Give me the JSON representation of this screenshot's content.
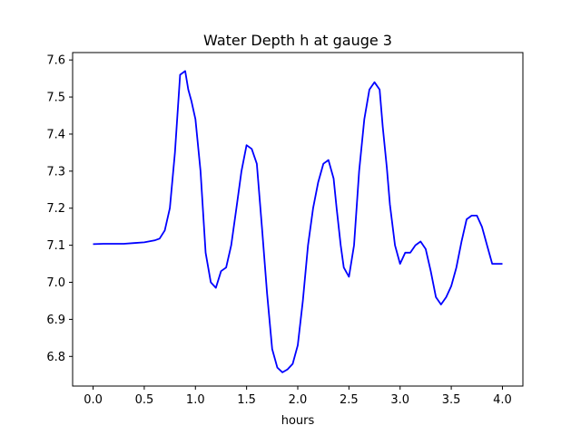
{
  "chart_data": {
    "type": "line",
    "title": "Water Depth h at gauge 3",
    "xlabel": "hours",
    "ylabel": "",
    "xlim": [
      -0.2,
      4.2
    ],
    "ylim": [
      6.72,
      7.62
    ],
    "xticks": [
      0.0,
      0.5,
      1.0,
      1.5,
      2.0,
      2.5,
      3.0,
      3.5,
      4.0
    ],
    "xtick_labels": [
      "0.0",
      "0.5",
      "1.0",
      "1.5",
      "2.0",
      "2.5",
      "3.0",
      "3.5",
      "4.0"
    ],
    "yticks": [
      6.8,
      6.9,
      7.0,
      7.1,
      7.2,
      7.3,
      7.4,
      7.5,
      7.6
    ],
    "ytick_labels": [
      "6.8",
      "6.9",
      "7.0",
      "7.1",
      "7.2",
      "7.3",
      "7.4",
      "7.5",
      "7.6"
    ],
    "grid": false,
    "series": [
      {
        "color": "#0000ff",
        "x": [
          0.0,
          0.1,
          0.2,
          0.3,
          0.4,
          0.5,
          0.6,
          0.65,
          0.7,
          0.75,
          0.8,
          0.85,
          0.9,
          0.93,
          0.96,
          1.0,
          1.05,
          1.1,
          1.15,
          1.2,
          1.25,
          1.3,
          1.35,
          1.4,
          1.45,
          1.5,
          1.55,
          1.6,
          1.65,
          1.7,
          1.75,
          1.8,
          1.85,
          1.9,
          1.95,
          2.0,
          2.05,
          2.1,
          2.15,
          2.2,
          2.25,
          2.3,
          2.35,
          2.38,
          2.42,
          2.45,
          2.5,
          2.55,
          2.6,
          2.65,
          2.7,
          2.75,
          2.8,
          2.83,
          2.87,
          2.9,
          2.95,
          3.0,
          3.05,
          3.1,
          3.15,
          3.2,
          3.25,
          3.3,
          3.35,
          3.4,
          3.45,
          3.5,
          3.55,
          3.6,
          3.65,
          3.7,
          3.75,
          3.8,
          3.85,
          3.9,
          3.95,
          4.0
        ],
        "y": [
          7.103,
          7.104,
          7.104,
          7.104,
          7.106,
          7.108,
          7.113,
          7.118,
          7.14,
          7.2,
          7.35,
          7.56,
          7.57,
          7.52,
          7.49,
          7.44,
          7.3,
          7.08,
          7.0,
          6.985,
          7.03,
          7.04,
          7.1,
          7.2,
          7.3,
          7.37,
          7.36,
          7.32,
          7.15,
          6.97,
          6.82,
          6.77,
          6.757,
          6.765,
          6.78,
          6.83,
          6.95,
          7.1,
          7.2,
          7.27,
          7.32,
          7.33,
          7.28,
          7.2,
          7.1,
          7.04,
          7.015,
          7.1,
          7.3,
          7.44,
          7.52,
          7.54,
          7.52,
          7.42,
          7.31,
          7.21,
          7.1,
          7.05,
          7.08,
          7.08,
          7.1,
          7.11,
          7.09,
          7.03,
          6.96,
          6.94,
          6.96,
          6.99,
          7.04,
          7.11,
          7.17,
          7.18,
          7.18,
          7.15,
          7.1,
          7.05,
          7.05,
          7.05
        ]
      }
    ]
  }
}
